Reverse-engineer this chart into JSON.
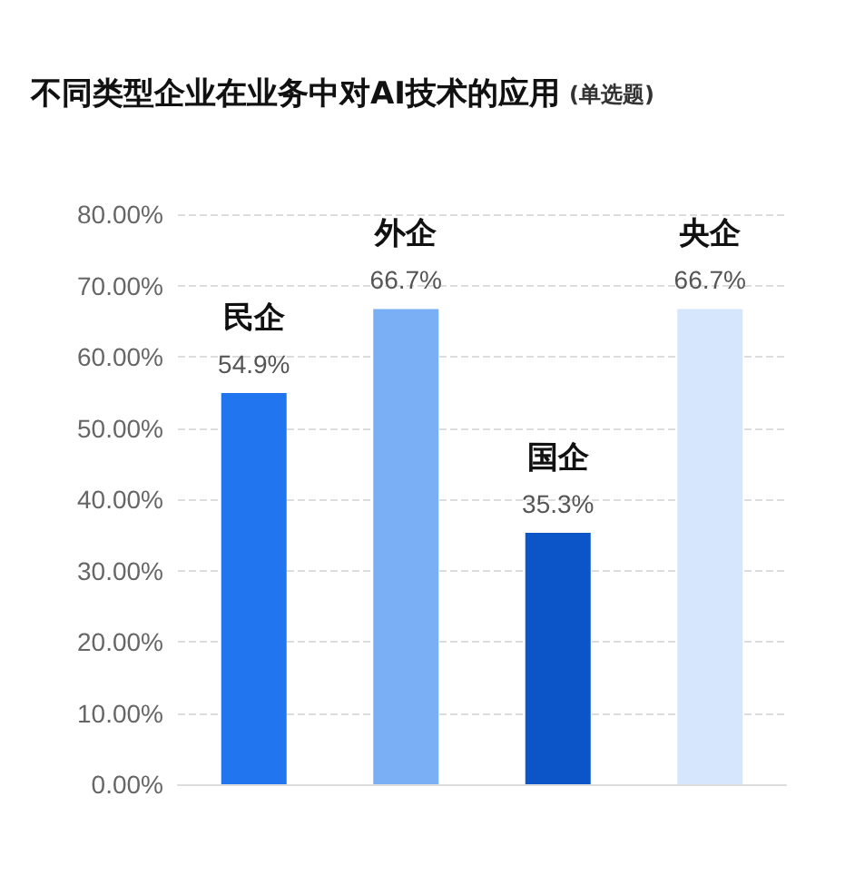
{
  "chart_data": {
    "type": "bar",
    "title": "不同类型企业在业务中对AI技术的应用",
    "subtitle": "(单选题)",
    "categories": [
      "民企",
      "外企",
      "国企",
      "央企"
    ],
    "values": [
      54.9,
      66.7,
      35.3,
      66.7
    ],
    "value_labels": [
      "54.9%",
      "66.7%",
      "35.3%",
      "66.7%"
    ],
    "colors": [
      "#2176f0",
      "#7aaef5",
      "#0b55c8",
      "#d6e6fd"
    ],
    "ylim": [
      0,
      80
    ],
    "yticks": [
      {
        "value": 0,
        "label": "0.00%"
      },
      {
        "value": 10,
        "label": "10.00%"
      },
      {
        "value": 20,
        "label": "20.00%"
      },
      {
        "value": 30,
        "label": "30.00%"
      },
      {
        "value": 40,
        "label": "40.00%"
      },
      {
        "value": 50,
        "label": "50.00%"
      },
      {
        "value": 60,
        "label": "60.00%"
      },
      {
        "value": 70,
        "label": "70.00%"
      },
      {
        "value": 80,
        "label": "80.00%"
      }
    ],
    "grid": "y",
    "tick_labels": "y"
  }
}
